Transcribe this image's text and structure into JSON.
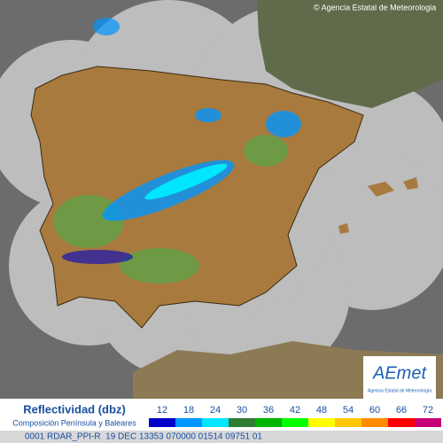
{
  "copyright": "© Agencia Estatal de Meteorologia",
  "logo": {
    "name": "AEmet",
    "subtitle": "Agencia Estatal de Meteorología"
  },
  "legend": {
    "title": "Reflectividad (dbz)",
    "subtitle": "Composición Península y Baleares",
    "scale": [
      {
        "value": 12,
        "color": "#0000c8"
      },
      {
        "value": 18,
        "color": "#0096ff"
      },
      {
        "value": 24,
        "color": "#00e6ff"
      },
      {
        "value": 30,
        "color": "#2e7d32"
      },
      {
        "value": 36,
        "color": "#00b400"
      },
      {
        "value": 42,
        "color": "#00ff00"
      },
      {
        "value": 48,
        "color": "#ffff00"
      },
      {
        "value": 54,
        "color": "#ffc800"
      },
      {
        "value": 60,
        "color": "#ff8c00"
      },
      {
        "value": 66,
        "color": "#ff0000"
      },
      {
        "value": 72,
        "color": "#c80078"
      }
    ]
  },
  "status": "0001 RDAR_PPI-R  19 DEC 13353 070000 01514 09751 01"
}
